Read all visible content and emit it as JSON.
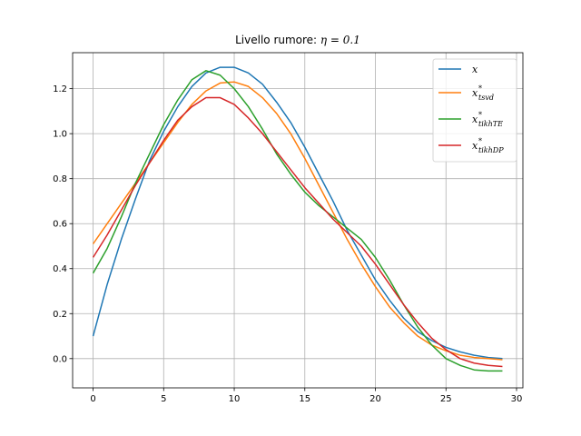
{
  "chart_data": {
    "type": "line",
    "title_prefix": "Livello rumore: ",
    "title_math": "η = 0.1",
    "xlabel": "",
    "ylabel": "",
    "xlim": [
      -1.45,
      30.45
    ],
    "ylim": [
      -0.13,
      1.36
    ],
    "xticks": [
      0,
      5,
      10,
      15,
      20,
      25,
      30
    ],
    "yticks": [
      0.0,
      0.2,
      0.4,
      0.6,
      0.8,
      1.0,
      1.2
    ],
    "grid": true,
    "legend_position": "top-right",
    "x": [
      0,
      1,
      2,
      3,
      4,
      5,
      6,
      7,
      8,
      9,
      10,
      11,
      12,
      13,
      14,
      15,
      16,
      17,
      18,
      19,
      20,
      21,
      22,
      23,
      24,
      25,
      26,
      27,
      28,
      29
    ],
    "series": [
      {
        "name": "x",
        "label_base": "x",
        "label_sup": "",
        "label_sub": "",
        "color": "#1f77b4",
        "values": [
          0.1,
          0.33,
          0.53,
          0.71,
          0.88,
          1.01,
          1.12,
          1.21,
          1.27,
          1.295,
          1.295,
          1.27,
          1.22,
          1.14,
          1.05,
          0.94,
          0.82,
          0.7,
          0.57,
          0.46,
          0.35,
          0.26,
          0.18,
          0.12,
          0.08,
          0.05,
          0.03,
          0.015,
          0.005,
          0.0
        ]
      },
      {
        "name": "x*_tsvd",
        "label_base": "x",
        "label_sup": "*",
        "label_sub": "tsvd",
        "color": "#ff7f0e",
        "values": [
          0.51,
          0.6,
          0.69,
          0.78,
          0.87,
          0.96,
          1.05,
          1.13,
          1.19,
          1.225,
          1.23,
          1.21,
          1.16,
          1.09,
          1.0,
          0.89,
          0.77,
          0.65,
          0.53,
          0.42,
          0.32,
          0.23,
          0.16,
          0.1,
          0.06,
          0.035,
          0.015,
          0.005,
          0.0,
          -0.005
        ]
      },
      {
        "name": "x*_tikhTE",
        "label_base": "x",
        "label_sup": "*",
        "label_sub": "tikhTE",
        "color": "#2ca02c",
        "values": [
          0.38,
          0.49,
          0.63,
          0.78,
          0.91,
          1.04,
          1.15,
          1.24,
          1.28,
          1.26,
          1.2,
          1.12,
          1.02,
          0.91,
          0.82,
          0.74,
          0.68,
          0.63,
          0.58,
          0.53,
          0.45,
          0.35,
          0.24,
          0.14,
          0.06,
          0.0,
          -0.03,
          -0.05,
          -0.055,
          -0.055
        ]
      },
      {
        "name": "x*_tikhDP",
        "label_base": "x",
        "label_sup": "*",
        "label_sub": "tikhDP",
        "color": "#d62728",
        "values": [
          0.45,
          0.55,
          0.66,
          0.77,
          0.87,
          0.97,
          1.06,
          1.12,
          1.16,
          1.16,
          1.13,
          1.07,
          1.0,
          0.92,
          0.84,
          0.76,
          0.69,
          0.62,
          0.56,
          0.5,
          0.42,
          0.33,
          0.24,
          0.16,
          0.09,
          0.04,
          0.0,
          -0.02,
          -0.03,
          -0.035
        ]
      }
    ]
  }
}
